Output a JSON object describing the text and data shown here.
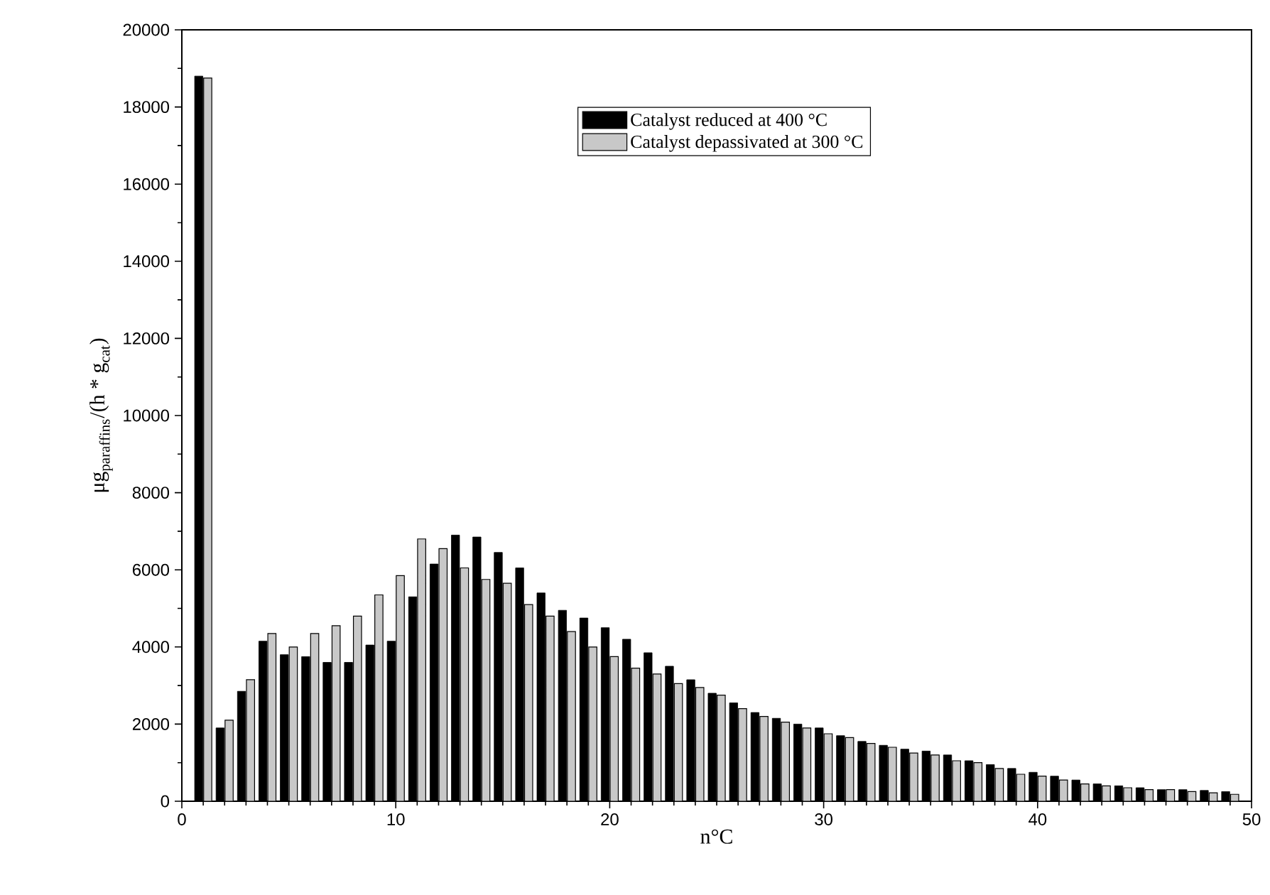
{
  "chart_data": {
    "type": "bar",
    "xlabel": "n°C",
    "ylabel": "\\text{μg}_{\\text{paraffins}}\\text{/(h * g}_{\\text{cat}}\\text{)}",
    "x": [
      1,
      2,
      3,
      4,
      5,
      6,
      7,
      8,
      9,
      10,
      11,
      12,
      13,
      14,
      15,
      16,
      17,
      18,
      19,
      20,
      21,
      22,
      23,
      24,
      25,
      26,
      27,
      28,
      29,
      30,
      31,
      32,
      33,
      34,
      35,
      36,
      37,
      38,
      39,
      40,
      41,
      42,
      43,
      44,
      45,
      46,
      47,
      48,
      49
    ],
    "series": [
      {
        "name": "Catalyst reduced at 400 °C",
        "color": "#000000",
        "values": [
          18800,
          1900,
          2850,
          4150,
          3800,
          3750,
          3600,
          3600,
          4050,
          4150,
          5300,
          6150,
          6900,
          6850,
          6450,
          6050,
          5400,
          4950,
          4750,
          4500,
          4200,
          3850,
          3500,
          3150,
          2800,
          2550,
          2300,
          2150,
          2000,
          1900,
          1700,
          1550,
          1450,
          1350,
          1300,
          1200,
          1050,
          950,
          850,
          750,
          650,
          550,
          450,
          400,
          350,
          300,
          300,
          280,
          250
        ]
      },
      {
        "name": "Catalyst depassivated at 300 °C",
        "color": "#c8c8c8",
        "values": [
          18750,
          2100,
          3150,
          4350,
          4000,
          4350,
          4550,
          4800,
          5350,
          5850,
          6800,
          6550,
          6050,
          5750,
          5650,
          5100,
          4800,
          4400,
          4000,
          3750,
          3450,
          3300,
          3050,
          2950,
          2750,
          2400,
          2200,
          2050,
          1900,
          1750,
          1650,
          1500,
          1400,
          1250,
          1200,
          1050,
          1000,
          850,
          700,
          650,
          550,
          450,
          400,
          350,
          300,
          300,
          250,
          220,
          180
        ]
      }
    ],
    "xlim": [
      0,
      50
    ],
    "xticks": [
      0,
      10,
      20,
      30,
      40,
      50
    ],
    "ylim": [
      0,
      20000
    ],
    "yticks": [
      0,
      2000,
      4000,
      6000,
      8000,
      10000,
      12000,
      14000,
      16000,
      18000,
      20000
    ],
    "legend": "top"
  }
}
